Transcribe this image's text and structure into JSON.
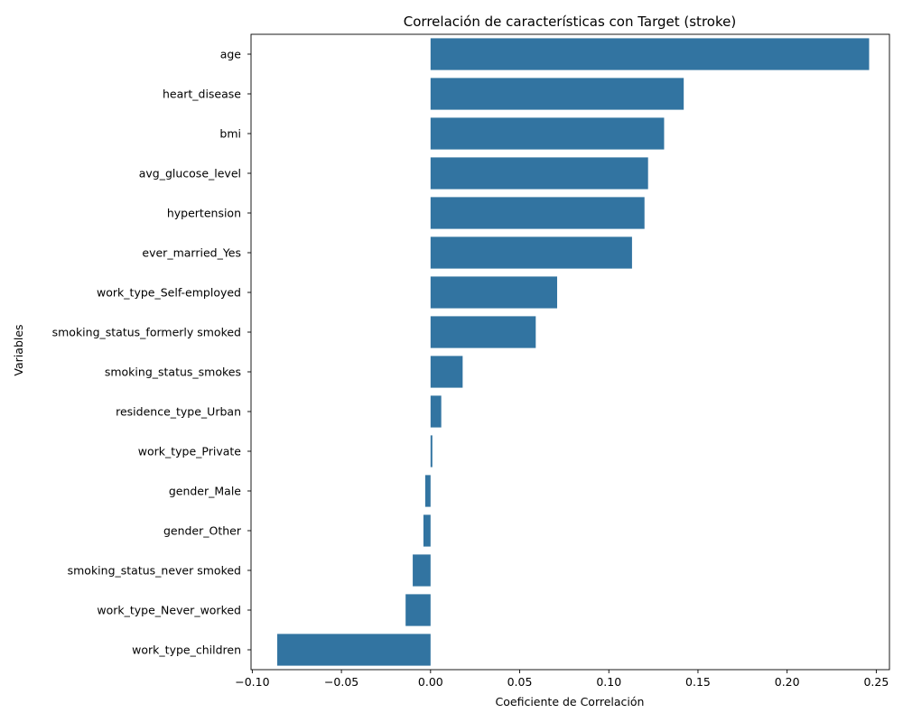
{
  "chart_data": {
    "type": "bar",
    "orientation": "horizontal",
    "title": "Correlación de características con Target (stroke)",
    "xlabel": "Coeficiente de Correlación",
    "ylabel": "Variables",
    "xlim": [
      -0.1,
      0.26
    ],
    "xticks": [
      -0.1,
      -0.05,
      0.0,
      0.05,
      0.1,
      0.15,
      0.2,
      0.25
    ],
    "xtick_labels": [
      "−0.10",
      "−0.05",
      "0.00",
      "0.05",
      "0.10",
      "0.15",
      "0.20",
      "0.25"
    ],
    "bar_color": "#3274a1",
    "grid": false,
    "categories": [
      "age",
      "heart_disease",
      "bmi",
      "avg_glucose_level",
      "hypertension",
      "ever_married_Yes",
      "work_type_Self-employed",
      "smoking_status_formerly smoked",
      "smoking_status_smokes",
      "residence_type_Urban",
      "work_type_Private",
      "gender_Male",
      "gender_Other",
      "smoking_status_never smoked",
      "work_type_Never_worked",
      "work_type_children"
    ],
    "values": [
      0.246,
      0.142,
      0.131,
      0.122,
      0.12,
      0.113,
      0.071,
      0.059,
      0.018,
      0.006,
      0.001,
      -0.003,
      -0.004,
      -0.01,
      -0.014,
      -0.086
    ]
  }
}
